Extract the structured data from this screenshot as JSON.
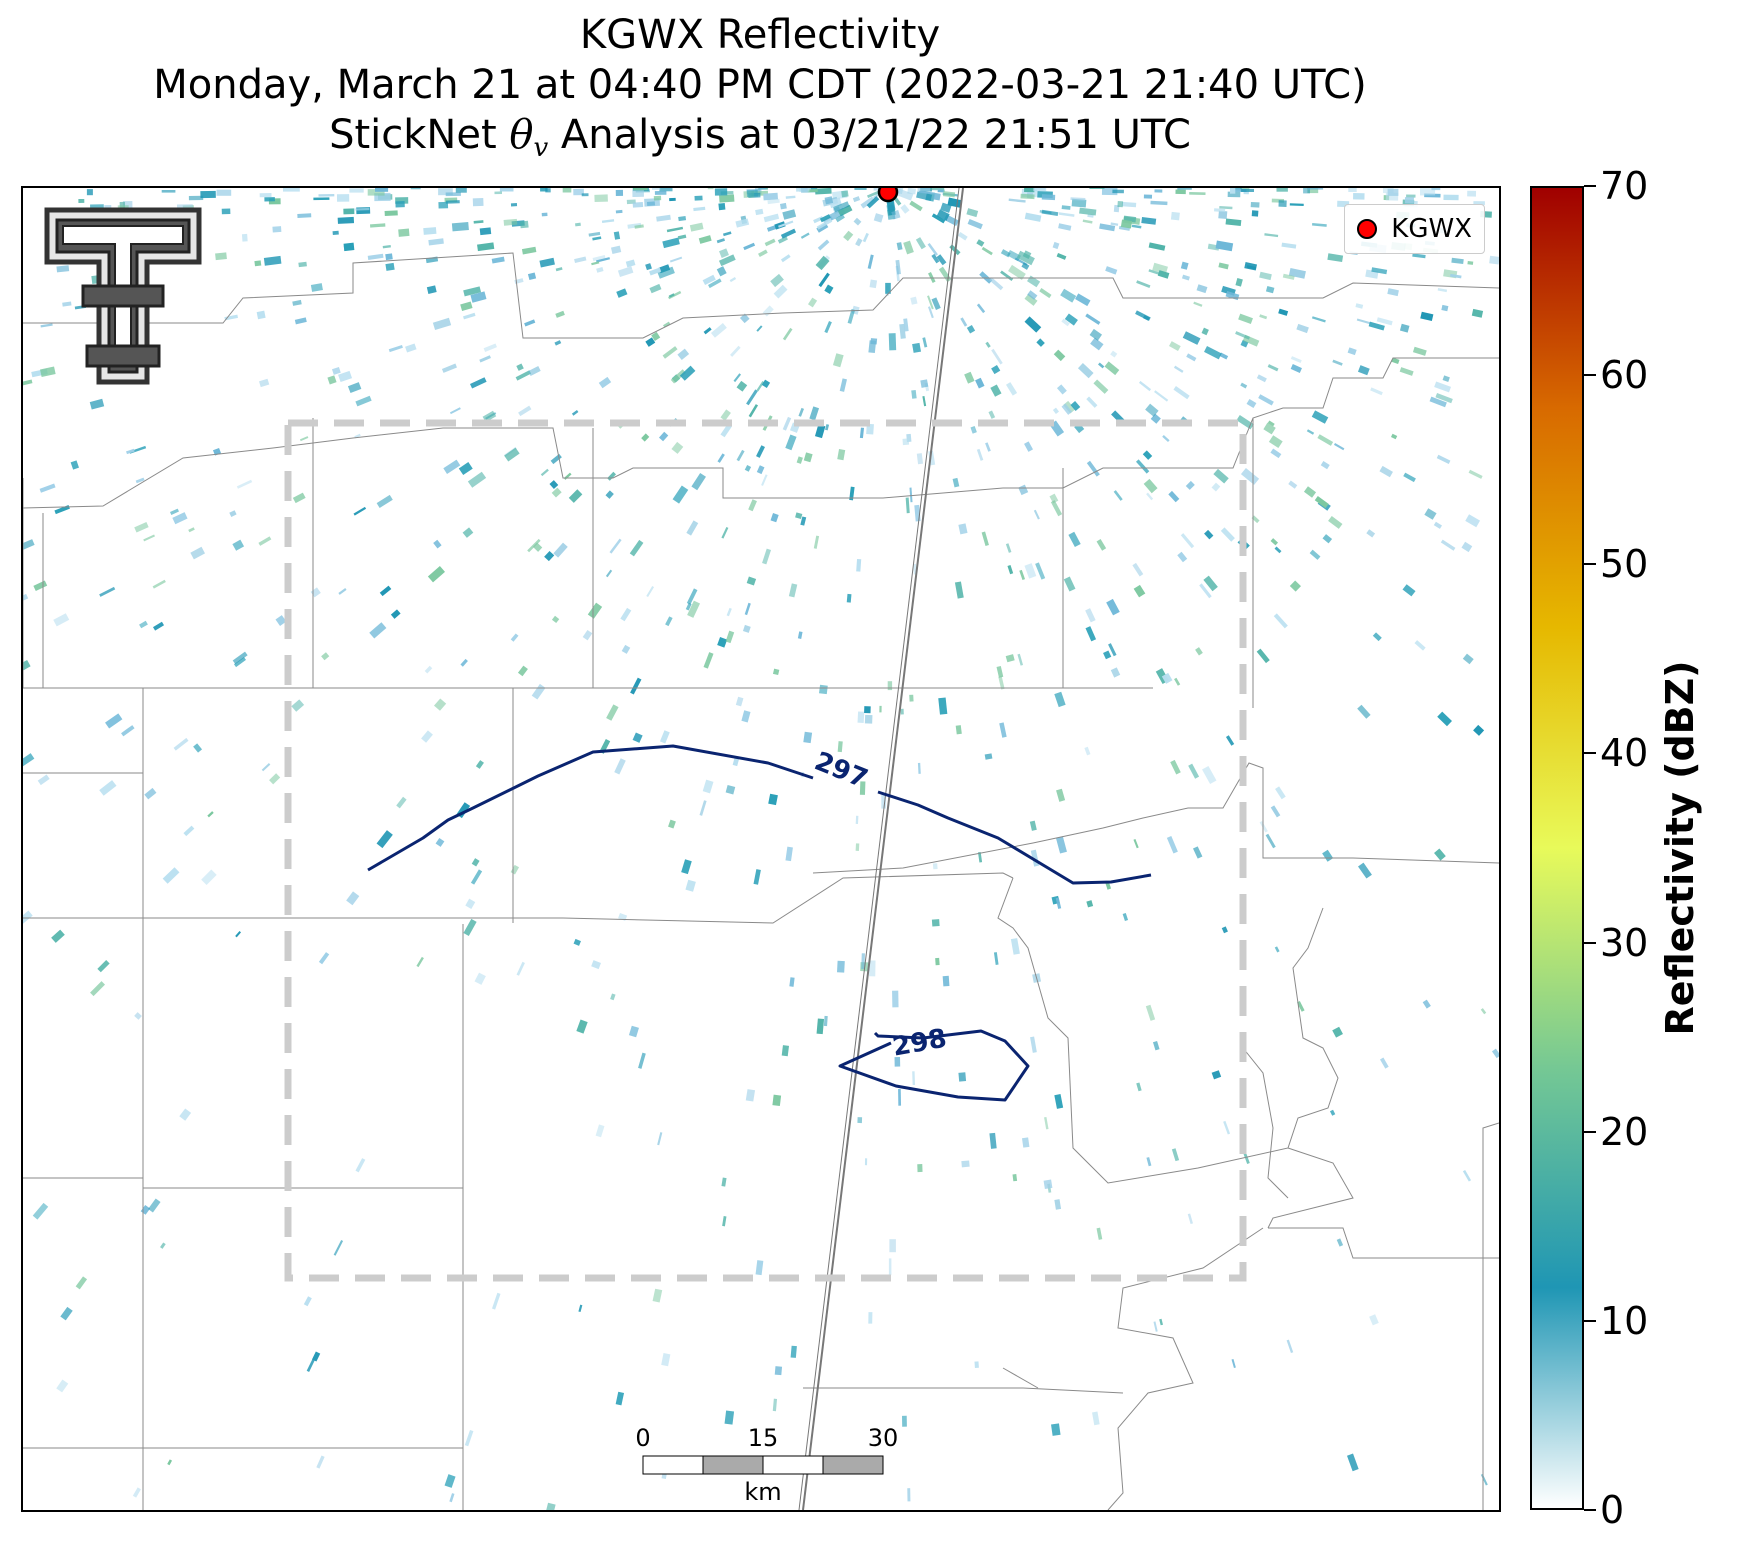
{
  "title": {
    "line1": "KGWX Reflectivity",
    "line2": "Monday, March 21 at 04:40 PM CDT (2022-03-21 21:40 UTC)",
    "line3_prefix": "StickNet ",
    "line3_theta": "θ",
    "line3_sub": "v",
    "line3_suffix": " Analysis at 03/21/22 21:51 UTC"
  },
  "legend": {
    "label": "KGWX",
    "marker_color": "#ff0000"
  },
  "contours": [
    {
      "value": 297,
      "label": "297",
      "color": "#0a2470"
    },
    {
      "value": 298,
      "label": "298",
      "color": "#0a2470"
    }
  ],
  "analysis_box": {
    "style": "dashed",
    "color": "#cccccc"
  },
  "scale_bar": {
    "labels": [
      "0",
      "15",
      "30"
    ],
    "unit": "km"
  },
  "colorbar": {
    "label": "Reflectivity (dBZ)",
    "min": 0,
    "max": 70,
    "ticks": [
      "0",
      "10",
      "20",
      "30",
      "40",
      "50",
      "60",
      "70"
    ],
    "colors": [
      "#ffffff",
      "#1f96b4",
      "#75c894",
      "#e8fa5a",
      "#e6b800",
      "#d86a00",
      "#a00000"
    ]
  },
  "logo": {
    "icon": "double-t-logo"
  }
}
